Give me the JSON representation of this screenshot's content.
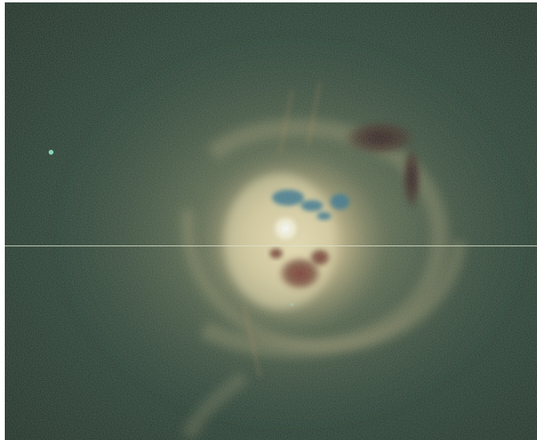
{
  "image": {
    "subject": "galaxy-cluster-core",
    "palette": {
      "background": "#1e3128",
      "halo": "#4a5d45",
      "glow": "#c9b98a",
      "core": "#f4eed0",
      "cavity_dark": "#3a2420",
      "cavity_red": "#7a3a2a",
      "blue_filament": "#2e6f8c",
      "accent_dot": "#7fd9c0"
    }
  }
}
